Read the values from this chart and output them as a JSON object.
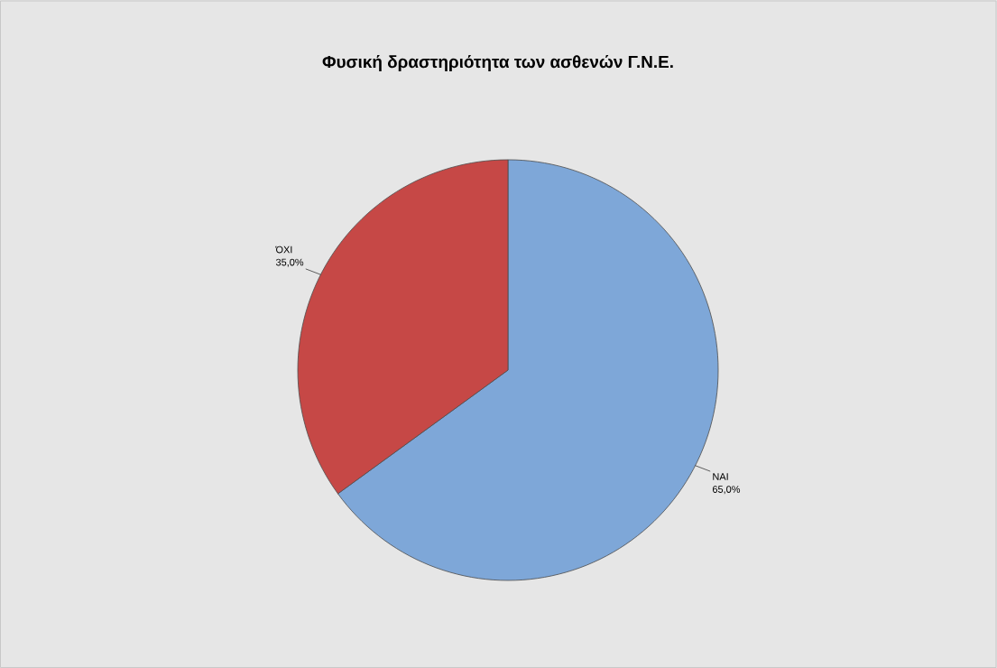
{
  "chart_data": {
    "type": "pie",
    "title": "Φυσική δραστηριότητα των ασθενών Γ.Ν.Ε.",
    "categories": [
      "ΝΑΙ",
      "ΌΧΙ"
    ],
    "values": [
      65,
      35
    ],
    "value_labels": [
      "65,0%",
      "35,0%"
    ],
    "colors": [
      "#7ea7d8",
      "#c64846"
    ]
  }
}
